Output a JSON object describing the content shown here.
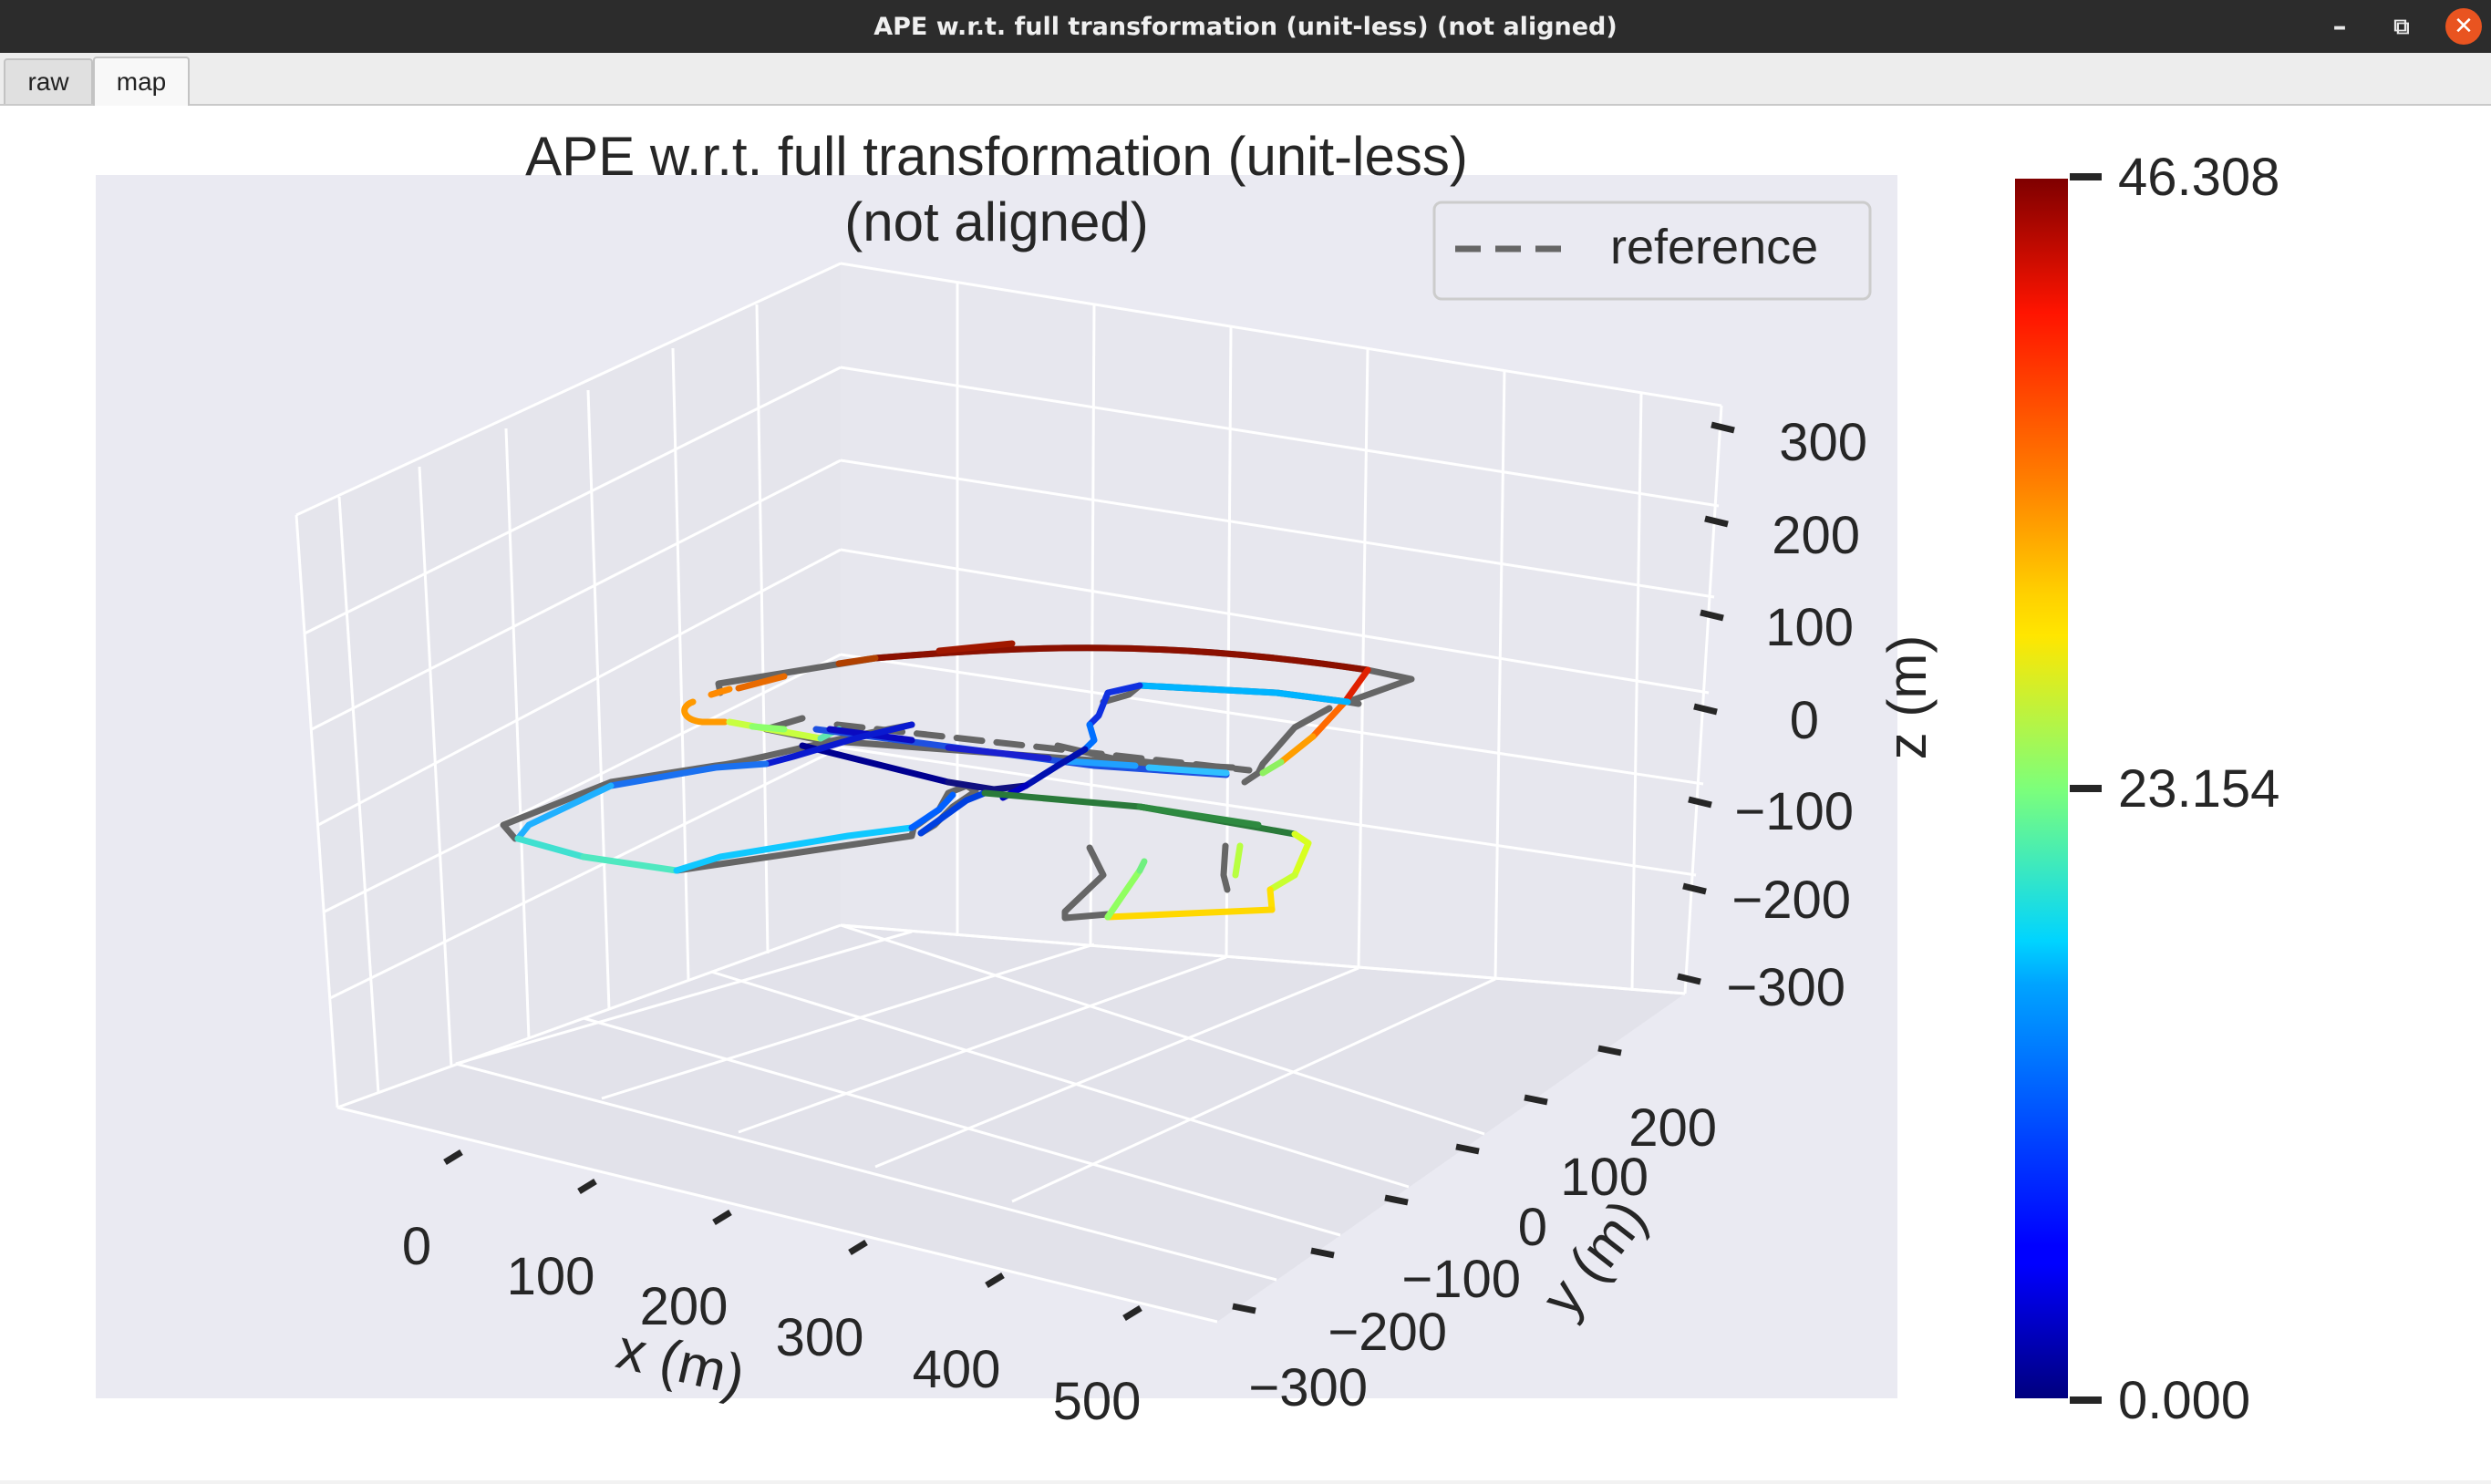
{
  "window": {
    "title": "APE w.r.t. full transformation (unit-less) (not aligned)",
    "minimize_icon": "minimize-icon",
    "maximize_icon": "maximize-icon",
    "close_icon": "close-icon"
  },
  "tabs": [
    {
      "label": "raw",
      "active": false
    },
    {
      "label": "map",
      "active": true
    }
  ],
  "plot": {
    "title_line1": "APE w.r.t. full transformation (unit-less)",
    "title_line2": "(not aligned)",
    "legend_label": "reference",
    "xlabel": "x (m)",
    "ylabel": "y (m)",
    "zlabel": "z (m)",
    "x_ticks": [
      "0",
      "100",
      "200",
      "300",
      "400",
      "500"
    ],
    "y_ticks": [
      "200",
      "100",
      "0",
      "−100",
      "−200",
      "−300"
    ],
    "z_ticks": [
      "300",
      "200",
      "100",
      "0",
      "−100",
      "−200",
      "−300"
    ],
    "colorbar_ticks": [
      "46.308",
      "23.154",
      "0.000"
    ],
    "colors": {
      "pane": "#eaeaf2",
      "grid": "#ffffff",
      "reference": "#666666"
    }
  },
  "chart_data": {
    "type": "line",
    "title": "APE w.r.t. full transformation (unit-less) (not aligned)",
    "xlabel": "x (m)",
    "ylabel": "y (m)",
    "zlabel": "z (m)",
    "xlim": [
      -50,
      550
    ],
    "ylim": [
      -300,
      250
    ],
    "zlim": [
      -300,
      300
    ],
    "series": [
      {
        "name": "reference",
        "style": "dashed"
      }
    ],
    "colorbar": {
      "min": 0.0,
      "mid": 23.154,
      "max": 46.308,
      "colormap": "jet"
    },
    "grid": true,
    "legend_position": "top-right"
  }
}
